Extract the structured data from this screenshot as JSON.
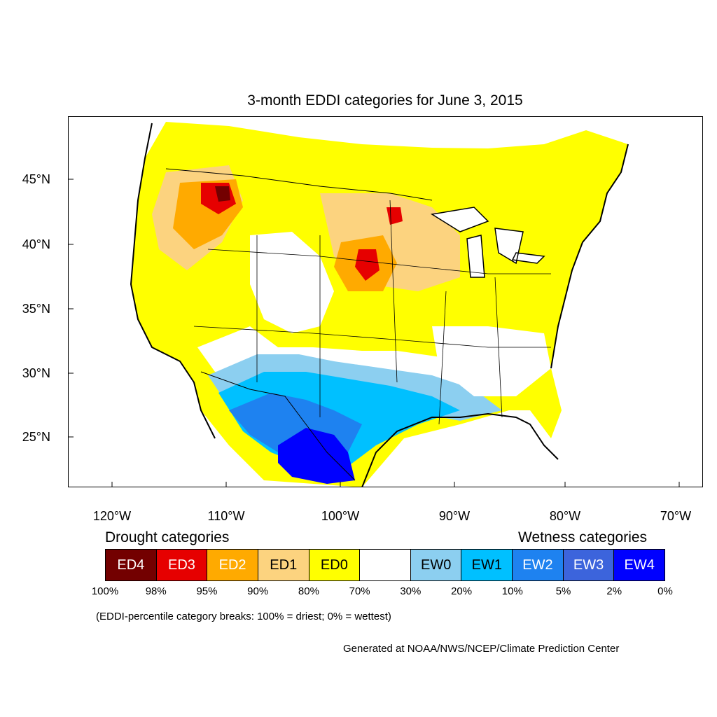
{
  "title": "3-month EDDI categories for June 3, 2015",
  "lat_labels": [
    "45°N",
    "40°N",
    "35°N",
    "30°N",
    "25°N"
  ],
  "lon_labels": [
    "120°W",
    "110°W",
    "100°W",
    "90°W",
    "80°W",
    "70°W"
  ],
  "legend": {
    "drought_heading": "Drought categories",
    "wetness_heading": "Wetness categories",
    "categories": [
      {
        "label": "ED4",
        "color": "#730000",
        "text_color": "#ffffff"
      },
      {
        "label": "ED3",
        "color": "#e60000",
        "text_color": "#ffffff"
      },
      {
        "label": "ED2",
        "color": "#ffaa00",
        "text_color": "#ffffff"
      },
      {
        "label": "ED1",
        "color": "#fcd37f",
        "text_color": "#000000"
      },
      {
        "label": "ED0",
        "color": "#ffff00",
        "text_color": "#000000"
      },
      {
        "label": "",
        "color": "#ffffff",
        "text_color": "#000000"
      },
      {
        "label": "EW0",
        "color": "#8ccff0",
        "text_color": "#000000"
      },
      {
        "label": "EW1",
        "color": "#00c0ff",
        "text_color": "#000000"
      },
      {
        "label": "EW2",
        "color": "#1e82f0",
        "text_color": "#ffffff"
      },
      {
        "label": "EW3",
        "color": "#3c64dc",
        "text_color": "#ffffff"
      },
      {
        "label": "EW4",
        "color": "#0000ff",
        "text_color": "#ffffff"
      }
    ],
    "percent_breaks": [
      "100%",
      "98%",
      "95%",
      "90%",
      "80%",
      "70%",
      "30%",
      "20%",
      "10%",
      "5%",
      "2%",
      "0%"
    ]
  },
  "breaks_note": "(EDDI-percentile category breaks: 100% = driest; 0% = wettest)",
  "credit": "Generated at NOAA/NWS/NCEP/Climate Prediction Center"
}
